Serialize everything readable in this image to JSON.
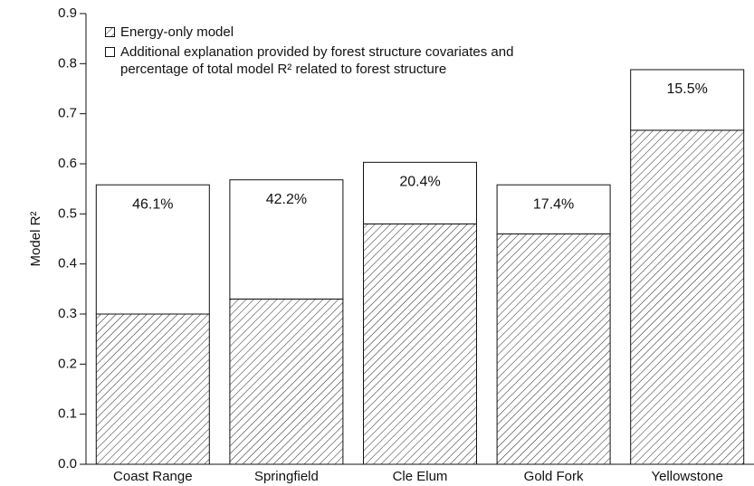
{
  "chart_data": {
    "type": "stacked_bar",
    "y_label": "Model R²",
    "categories": [
      "Coast Range",
      "Springfield",
      "Cle Elum",
      "Gold Fork",
      "Yellowstone"
    ],
    "series": [
      {
        "name": "Energy-only model",
        "color": "#222222",
        "pattern": "hatch",
        "values": [
          0.3,
          0.33,
          0.48,
          0.46,
          0.667
        ]
      },
      {
        "name": "Additional explanation provided by forest structure covariates and percentage of total model R² related to forest structure",
        "color": "#ffffff",
        "values": [
          0.258,
          0.238,
          0.123,
          0.098,
          0.121
        ]
      }
    ],
    "annotations": [
      "46.1%",
      "42.2%",
      "20.4%",
      "17.4%",
      "15.5%"
    ],
    "ylim": [
      0,
      0.9
    ],
    "yticks": [
      {
        "value": 0,
        "label": "0.0"
      },
      0.1,
      0.2,
      0.3,
      0.4,
      0.5,
      0.6,
      0.7,
      0.8,
      0.9
    ],
    "grid": false,
    "legend": "top-left"
  }
}
